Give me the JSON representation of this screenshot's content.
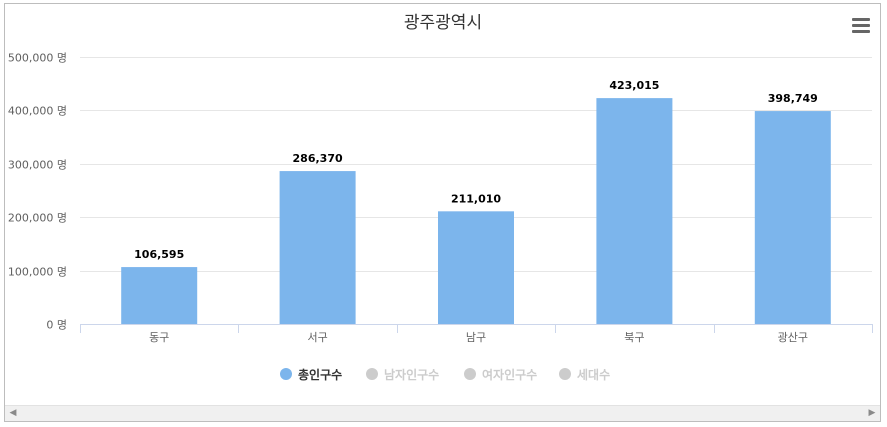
{
  "chart_data": {
    "type": "bar",
    "title": "광주광역시",
    "categories": [
      "동구",
      "서구",
      "남구",
      "북구",
      "광산구"
    ],
    "series": [
      {
        "name": "총인구수",
        "values": [
          106595,
          286370,
          211010,
          423015,
          398749
        ],
        "visible": true,
        "color": "#7cb5ec"
      },
      {
        "name": "남자인구수",
        "visible": false,
        "color": "#cccccc"
      },
      {
        "name": "여자인구수",
        "visible": false,
        "color": "#cccccc"
      },
      {
        "name": "세대수",
        "visible": false,
        "color": "#cccccc"
      }
    ],
    "data_labels": [
      "106,595",
      "286,370",
      "211,010",
      "423,015",
      "398,749"
    ],
    "y_ticks": [
      0,
      100000,
      200000,
      300000,
      400000,
      500000
    ],
    "y_tick_labels": [
      "0 명",
      "100,000 명",
      "200,000 명",
      "300,000 명",
      "400,000 명",
      "500,000 명"
    ],
    "ylim": [
      0,
      500000
    ],
    "grid": true,
    "legend_position": "bottom"
  },
  "ui": {
    "menu_icon": "hamburger-menu-icon",
    "scroll_left_glyph": "◀",
    "scroll_right_glyph": "▶"
  }
}
